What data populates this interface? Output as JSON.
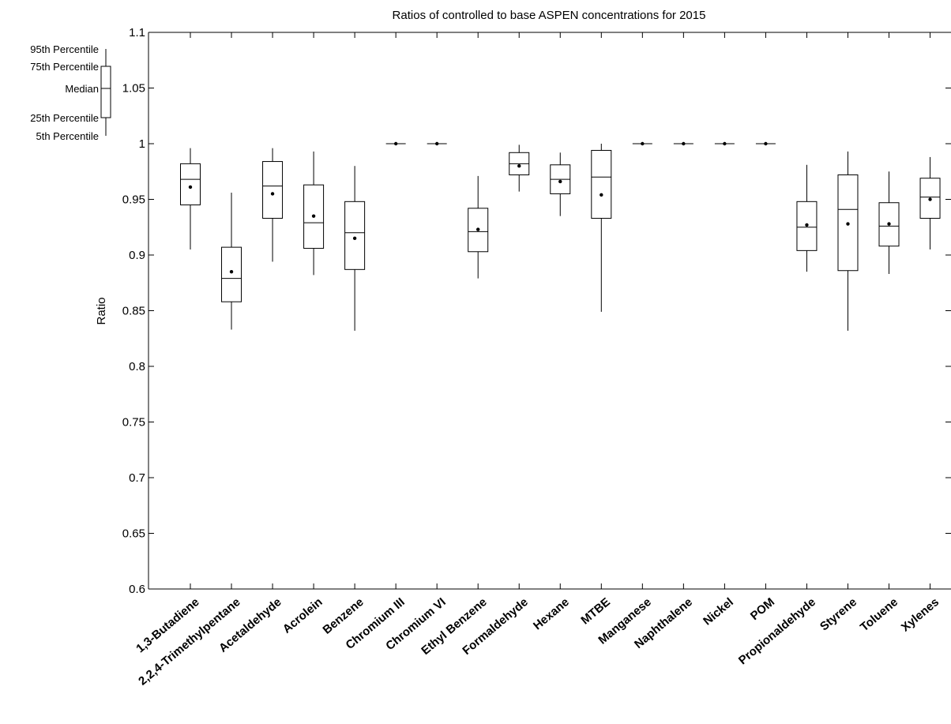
{
  "chart_data": {
    "type": "boxplot",
    "title": "Ratios of controlled to base ASPEN concentrations for 2015",
    "xlabel": "",
    "ylabel": "Ratio",
    "ylim": [
      0.6,
      1.1
    ],
    "yticks": [
      0.6,
      0.65,
      0.7,
      0.75,
      0.8,
      0.85,
      0.9,
      0.95,
      1,
      1.05,
      1.1
    ],
    "ytick_labels": [
      "0.6",
      "0.65",
      "0.7",
      "0.75",
      "0.8",
      "0.85",
      "0.9",
      "0.95",
      "1",
      "1.05",
      "1.1"
    ],
    "categories": [
      "1,3-Butadiene",
      "2,2,4-Trimethylpentane",
      "Acetaldehyde",
      "Acrolein",
      "Benzene",
      "Chromium III",
      "Chromium VI",
      "Ethyl Benzene",
      "Formaldehyde",
      "Hexane",
      "MTBE",
      "Manganese",
      "Naphthalene",
      "Nickel",
      "POM",
      "Propionaldehyde",
      "Styrene",
      "Toluene",
      "Xylenes"
    ],
    "boxes": [
      {
        "p5": 0.905,
        "p25": 0.945,
        "median": 0.968,
        "p75": 0.982,
        "p95": 0.996,
        "mean": 0.961
      },
      {
        "p5": 0.833,
        "p25": 0.858,
        "median": 0.879,
        "p75": 0.907,
        "p95": 0.956,
        "mean": 0.885
      },
      {
        "p5": 0.894,
        "p25": 0.933,
        "median": 0.962,
        "p75": 0.984,
        "p95": 0.996,
        "mean": 0.955
      },
      {
        "p5": 0.882,
        "p25": 0.906,
        "median": 0.929,
        "p75": 0.963,
        "p95": 0.993,
        "mean": 0.935
      },
      {
        "p5": 0.832,
        "p25": 0.887,
        "median": 0.92,
        "p75": 0.948,
        "p95": 0.98,
        "mean": 0.915
      },
      {
        "p5": 1.0,
        "p25": 1.0,
        "median": 1.0,
        "p75": 1.0,
        "p95": 1.0,
        "mean": 1.0
      },
      {
        "p5": 1.0,
        "p25": 1.0,
        "median": 1.0,
        "p75": 1.0,
        "p95": 1.0,
        "mean": 1.0
      },
      {
        "p5": 0.879,
        "p25": 0.903,
        "median": 0.921,
        "p75": 0.942,
        "p95": 0.971,
        "mean": 0.923
      },
      {
        "p5": 0.957,
        "p25": 0.972,
        "median": 0.982,
        "p75": 0.992,
        "p95": 0.999,
        "mean": 0.98
      },
      {
        "p5": 0.935,
        "p25": 0.955,
        "median": 0.968,
        "p75": 0.981,
        "p95": 0.992,
        "mean": 0.966
      },
      {
        "p5": 0.849,
        "p25": 0.933,
        "median": 0.97,
        "p75": 0.994,
        "p95": 1.0,
        "mean": 0.954
      },
      {
        "p5": 1.0,
        "p25": 1.0,
        "median": 1.0,
        "p75": 1.0,
        "p95": 1.0,
        "mean": 1.0
      },
      {
        "p5": 1.0,
        "p25": 1.0,
        "median": 1.0,
        "p75": 1.0,
        "p95": 1.0,
        "mean": 1.0
      },
      {
        "p5": 1.0,
        "p25": 1.0,
        "median": 1.0,
        "p75": 1.0,
        "p95": 1.0,
        "mean": 1.0
      },
      {
        "p5": 1.0,
        "p25": 1.0,
        "median": 1.0,
        "p75": 1.0,
        "p95": 1.0,
        "mean": 1.0
      },
      {
        "p5": 0.885,
        "p25": 0.904,
        "median": 0.925,
        "p75": 0.948,
        "p95": 0.981,
        "mean": 0.927
      },
      {
        "p5": 0.832,
        "p25": 0.886,
        "median": 0.941,
        "p75": 0.972,
        "p95": 0.993,
        "mean": 0.928
      },
      {
        "p5": 0.883,
        "p25": 0.908,
        "median": 0.926,
        "p75": 0.947,
        "p95": 0.975,
        "mean": 0.928
      },
      {
        "p5": 0.905,
        "p25": 0.933,
        "median": 0.952,
        "p75": 0.969,
        "p95": 0.988,
        "mean": 0.95
      }
    ],
    "grid": false,
    "legend": {
      "placement": "top-left",
      "labels": [
        "95th Percentile",
        "75th Percentile",
        "Median",
        "25th Percentile",
        "5th Percentile"
      ]
    }
  }
}
